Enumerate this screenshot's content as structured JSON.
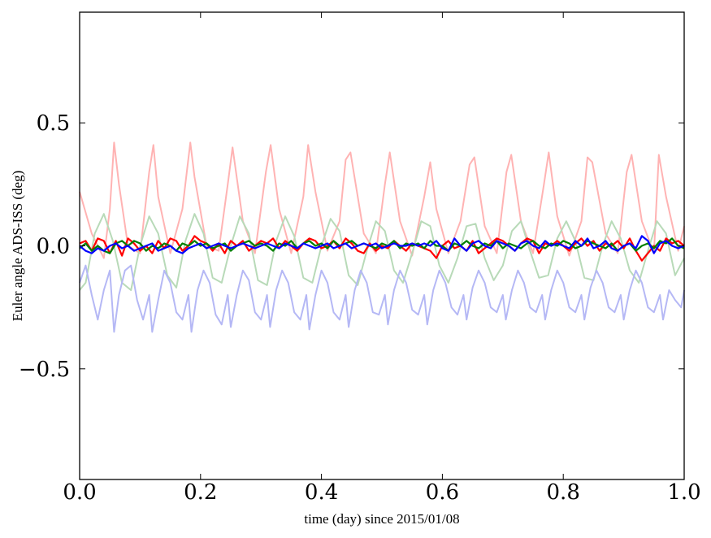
{
  "chart_data": {
    "type": "line",
    "title": "",
    "xlabel": "time (day) since 2015/01/08",
    "ylabel": "Euler angle ADS-ISS (deg)",
    "xlim": [
      0.0,
      1.0
    ],
    "ylim": [
      -0.95,
      0.95
    ],
    "xticks": [
      0.0,
      0.2,
      0.4,
      0.6,
      0.8,
      1.0
    ],
    "xtick_labels": [
      "0.0",
      "0.2",
      "0.4",
      "0.6",
      "0.8",
      "1.0"
    ],
    "yticks": [
      0.5,
      0.0,
      -0.5
    ],
    "ytick_labels": [
      "0.5",
      "0.0",
      "−0.5"
    ],
    "grid": false,
    "legend": "none",
    "series": [
      {
        "color": "#ffb3b3",
        "opacity": 1,
        "x": [
          0.0,
          0.02,
          0.04,
          0.05,
          0.057,
          0.065,
          0.08,
          0.1,
          0.115,
          0.122,
          0.13,
          0.15,
          0.17,
          0.183,
          0.19,
          0.21,
          0.23,
          0.245,
          0.253,
          0.27,
          0.29,
          0.308,
          0.316,
          0.33,
          0.35,
          0.37,
          0.378,
          0.39,
          0.41,
          0.43,
          0.44,
          0.448,
          0.47,
          0.49,
          0.505,
          0.513,
          0.53,
          0.55,
          0.57,
          0.58,
          0.59,
          0.61,
          0.63,
          0.645,
          0.653,
          0.67,
          0.69,
          0.706,
          0.714,
          0.73,
          0.75,
          0.768,
          0.776,
          0.79,
          0.81,
          0.83,
          0.84,
          0.848,
          0.87,
          0.89,
          0.905,
          0.913,
          0.93,
          0.95,
          0.958,
          0.97,
          0.99,
          1.0
        ],
        "y": [
          0.22,
          0.05,
          -0.05,
          0.15,
          0.42,
          0.25,
          0.0,
          -0.03,
          0.3,
          0.41,
          0.2,
          -0.03,
          0.15,
          0.42,
          0.28,
          0.0,
          -0.02,
          0.25,
          0.4,
          0.1,
          -0.03,
          0.3,
          0.41,
          0.15,
          -0.03,
          0.2,
          0.41,
          0.22,
          -0.02,
          0.1,
          0.35,
          0.38,
          0.05,
          -0.03,
          0.25,
          0.38,
          0.1,
          -0.04,
          0.2,
          0.34,
          0.15,
          -0.03,
          0.1,
          0.33,
          0.36,
          0.08,
          -0.03,
          0.3,
          0.37,
          0.1,
          -0.03,
          0.25,
          0.38,
          0.12,
          -0.04,
          0.1,
          0.36,
          0.34,
          0.05,
          -0.03,
          0.3,
          0.37,
          0.1,
          -0.03,
          0.37,
          0.2,
          -0.02,
          0.08
        ]
      },
      {
        "color": "#b8dab8",
        "opacity": 1,
        "x": [
          0.0,
          0.01,
          0.025,
          0.04,
          0.055,
          0.07,
          0.085,
          0.1,
          0.115,
          0.13,
          0.145,
          0.16,
          0.175,
          0.19,
          0.205,
          0.22,
          0.235,
          0.25,
          0.265,
          0.28,
          0.295,
          0.31,
          0.325,
          0.34,
          0.355,
          0.37,
          0.385,
          0.4,
          0.415,
          0.43,
          0.445,
          0.46,
          0.475,
          0.49,
          0.505,
          0.52,
          0.535,
          0.55,
          0.565,
          0.58,
          0.595,
          0.61,
          0.625,
          0.64,
          0.655,
          0.67,
          0.685,
          0.7,
          0.715,
          0.73,
          0.745,
          0.76,
          0.775,
          0.79,
          0.805,
          0.82,
          0.835,
          0.85,
          0.865,
          0.88,
          0.895,
          0.91,
          0.925,
          0.94,
          0.955,
          0.97,
          0.985,
          1.0
        ],
        "y": [
          -0.18,
          -0.15,
          0.05,
          0.13,
          0.02,
          -0.15,
          -0.18,
          0.0,
          0.12,
          0.05,
          -0.12,
          -0.17,
          0.02,
          0.13,
          0.05,
          -0.13,
          -0.15,
          0.0,
          0.12,
          0.05,
          -0.14,
          -0.16,
          0.02,
          0.12,
          0.04,
          -0.13,
          -0.15,
          0.0,
          0.11,
          0.06,
          -0.12,
          -0.16,
          -0.02,
          0.1,
          0.06,
          -0.1,
          -0.15,
          -0.03,
          0.1,
          0.08,
          -0.08,
          -0.15,
          -0.05,
          0.08,
          0.09,
          -0.05,
          -0.14,
          -0.08,
          0.06,
          0.1,
          -0.02,
          -0.13,
          -0.12,
          0.03,
          0.1,
          0.02,
          -0.13,
          -0.14,
          0.0,
          0.1,
          0.03,
          -0.1,
          -0.15,
          -0.02,
          0.1,
          0.05,
          -0.12,
          -0.05
        ]
      },
      {
        "color": "#b5b8f5",
        "opacity": 1,
        "x": [
          0.0,
          0.01,
          0.02,
          0.03,
          0.04,
          0.05,
          0.057,
          0.065,
          0.075,
          0.085,
          0.095,
          0.105,
          0.115,
          0.12,
          0.13,
          0.14,
          0.15,
          0.16,
          0.17,
          0.18,
          0.185,
          0.195,
          0.205,
          0.215,
          0.225,
          0.235,
          0.245,
          0.25,
          0.26,
          0.27,
          0.28,
          0.29,
          0.3,
          0.31,
          0.315,
          0.325,
          0.335,
          0.345,
          0.355,
          0.365,
          0.375,
          0.38,
          0.39,
          0.4,
          0.41,
          0.42,
          0.43,
          0.44,
          0.445,
          0.455,
          0.465,
          0.475,
          0.485,
          0.495,
          0.505,
          0.51,
          0.52,
          0.53,
          0.54,
          0.55,
          0.56,
          0.57,
          0.575,
          0.585,
          0.595,
          0.605,
          0.615,
          0.625,
          0.635,
          0.64,
          0.65,
          0.66,
          0.67,
          0.68,
          0.69,
          0.7,
          0.705,
          0.715,
          0.725,
          0.735,
          0.745,
          0.755,
          0.765,
          0.77,
          0.78,
          0.79,
          0.8,
          0.81,
          0.82,
          0.83,
          0.835,
          0.845,
          0.855,
          0.865,
          0.875,
          0.885,
          0.895,
          0.9,
          0.91,
          0.92,
          0.93,
          0.94,
          0.95,
          0.96,
          0.965,
          0.975,
          0.985,
          0.995,
          1.0
        ],
        "y": [
          -0.15,
          -0.08,
          -0.2,
          -0.3,
          -0.18,
          -0.1,
          -0.35,
          -0.2,
          -0.1,
          -0.08,
          -0.22,
          -0.3,
          -0.2,
          -0.35,
          -0.22,
          -0.1,
          -0.15,
          -0.27,
          -0.3,
          -0.2,
          -0.35,
          -0.18,
          -0.1,
          -0.15,
          -0.28,
          -0.32,
          -0.2,
          -0.33,
          -0.2,
          -0.1,
          -0.14,
          -0.27,
          -0.3,
          -0.2,
          -0.33,
          -0.18,
          -0.1,
          -0.15,
          -0.27,
          -0.3,
          -0.2,
          -0.34,
          -0.2,
          -0.1,
          -0.15,
          -0.27,
          -0.3,
          -0.2,
          -0.33,
          -0.18,
          -0.1,
          -0.15,
          -0.27,
          -0.28,
          -0.2,
          -0.32,
          -0.18,
          -0.1,
          -0.15,
          -0.26,
          -0.28,
          -0.2,
          -0.32,
          -0.18,
          -0.1,
          -0.15,
          -0.25,
          -0.28,
          -0.2,
          -0.3,
          -0.17,
          -0.1,
          -0.15,
          -0.25,
          -0.27,
          -0.2,
          -0.3,
          -0.18,
          -0.1,
          -0.15,
          -0.25,
          -0.27,
          -0.2,
          -0.3,
          -0.18,
          -0.1,
          -0.15,
          -0.25,
          -0.27,
          -0.2,
          -0.3,
          -0.17,
          -0.1,
          -0.15,
          -0.25,
          -0.27,
          -0.2,
          -0.3,
          -0.18,
          -0.1,
          -0.15,
          -0.25,
          -0.27,
          -0.2,
          -0.3,
          -0.18,
          -0.22,
          -0.25,
          -0.18
        ]
      },
      {
        "color": "#ff0000",
        "opacity": 1,
        "x": [
          0.0,
          0.01,
          0.02,
          0.03,
          0.04,
          0.05,
          0.06,
          0.07,
          0.08,
          0.09,
          0.1,
          0.11,
          0.12,
          0.13,
          0.14,
          0.15,
          0.16,
          0.17,
          0.18,
          0.19,
          0.2,
          0.21,
          0.22,
          0.23,
          0.24,
          0.25,
          0.26,
          0.27,
          0.28,
          0.29,
          0.3,
          0.31,
          0.32,
          0.33,
          0.34,
          0.35,
          0.36,
          0.37,
          0.38,
          0.39,
          0.4,
          0.41,
          0.42,
          0.43,
          0.44,
          0.45,
          0.46,
          0.47,
          0.48,
          0.49,
          0.5,
          0.51,
          0.52,
          0.53,
          0.54,
          0.55,
          0.56,
          0.57,
          0.58,
          0.59,
          0.6,
          0.61,
          0.62,
          0.63,
          0.64,
          0.65,
          0.66,
          0.67,
          0.68,
          0.69,
          0.7,
          0.71,
          0.72,
          0.73,
          0.74,
          0.75,
          0.76,
          0.77,
          0.78,
          0.79,
          0.8,
          0.81,
          0.82,
          0.83,
          0.84,
          0.85,
          0.86,
          0.87,
          0.88,
          0.89,
          0.9,
          0.91,
          0.92,
          0.93,
          0.94,
          0.95,
          0.96,
          0.97,
          0.98,
          0.99,
          1.0
        ],
        "y": [
          0.01,
          0.02,
          -0.02,
          0.03,
          0.02,
          -0.03,
          0.02,
          -0.04,
          0.03,
          0.01,
          -0.02,
          0.0,
          -0.03,
          0.02,
          -0.01,
          0.03,
          0.02,
          -0.02,
          0.0,
          0.04,
          0.02,
          0.01,
          -0.02,
          0.01,
          -0.03,
          0.02,
          0.0,
          0.02,
          -0.02,
          0.0,
          0.02,
          0.01,
          0.03,
          -0.01,
          0.02,
          0.0,
          -0.02,
          0.01,
          0.03,
          0.02,
          -0.01,
          0.0,
          0.02,
          -0.01,
          0.03,
          0.01,
          -0.02,
          -0.03,
          0.01,
          -0.02,
          0.0,
          -0.01,
          0.02,
          0.0,
          -0.02,
          0.01,
          0.0,
          -0.01,
          -0.02,
          -0.05,
          0.0,
          0.02,
          -0.01,
          0.0,
          -0.02,
          0.02,
          -0.03,
          -0.01,
          0.01,
          0.03,
          0.02,
          0.0,
          -0.02,
          0.01,
          0.03,
          0.02,
          -0.03,
          0.01,
          0.0,
          0.02,
          0.0,
          -0.02,
          0.01,
          0.03,
          0.0,
          0.02,
          -0.02,
          0.01,
          0.0,
          0.02,
          -0.01,
          0.03,
          -0.02,
          -0.06,
          -0.03,
          0.0,
          -0.02,
          0.03,
          0.01,
          0.02,
          0.0
        ]
      },
      {
        "color": "#007f00",
        "opacity": 1,
        "x": [
          0.0,
          0.01,
          0.02,
          0.03,
          0.04,
          0.05,
          0.06,
          0.07,
          0.08,
          0.09,
          0.1,
          0.11,
          0.12,
          0.13,
          0.14,
          0.15,
          0.16,
          0.17,
          0.18,
          0.19,
          0.2,
          0.21,
          0.22,
          0.23,
          0.24,
          0.25,
          0.26,
          0.27,
          0.28,
          0.29,
          0.3,
          0.31,
          0.32,
          0.33,
          0.34,
          0.35,
          0.36,
          0.37,
          0.38,
          0.39,
          0.4,
          0.41,
          0.42,
          0.43,
          0.44,
          0.45,
          0.46,
          0.47,
          0.48,
          0.49,
          0.5,
          0.51,
          0.52,
          0.53,
          0.54,
          0.55,
          0.56,
          0.57,
          0.58,
          0.59,
          0.6,
          0.61,
          0.62,
          0.63,
          0.64,
          0.65,
          0.66,
          0.67,
          0.68,
          0.69,
          0.7,
          0.71,
          0.72,
          0.73,
          0.74,
          0.75,
          0.76,
          0.77,
          0.78,
          0.79,
          0.8,
          0.81,
          0.82,
          0.83,
          0.84,
          0.85,
          0.86,
          0.87,
          0.88,
          0.89,
          0.9,
          0.91,
          0.92,
          0.93,
          0.94,
          0.95,
          0.96,
          0.97,
          0.98,
          0.99,
          1.0
        ],
        "y": [
          -0.01,
          0.01,
          -0.02,
          0.0,
          -0.02,
          -0.03,
          0.01,
          0.02,
          0.0,
          0.02,
          0.01,
          -0.02,
          0.0,
          -0.01,
          0.01,
          0.0,
          -0.02,
          0.01,
          0.0,
          0.02,
          0.0,
          0.01,
          -0.01,
          0.0,
          0.01,
          -0.02,
          0.0,
          0.01,
          0.02,
          0.0,
          0.01,
          0.0,
          -0.02,
          0.01,
          0.0,
          0.02,
          -0.01,
          0.01,
          0.02,
          0.0,
          0.01,
          -0.01,
          0.02,
          0.0,
          0.01,
          0.02,
          0.0,
          0.01,
          0.0,
          -0.01,
          0.01,
          0.0,
          0.02,
          -0.01,
          0.01,
          0.0,
          0.01,
          -0.01,
          0.02,
          0.0,
          0.0,
          -0.02,
          0.01,
          0.0,
          0.02,
          0.0,
          -0.01,
          0.01,
          0.0,
          0.02,
          -0.01,
          0.01,
          0.0,
          -0.01,
          0.01,
          0.02,
          0.0,
          -0.01,
          0.01,
          0.0,
          0.02,
          0.01,
          -0.01,
          0.0,
          0.02,
          0.01,
          0.0,
          -0.01,
          0.01,
          -0.02,
          0.0,
          0.01,
          -0.02,
          0.0,
          0.01,
          -0.01,
          0.02,
          0.01,
          0.03,
          0.0,
          -0.01
        ]
      },
      {
        "color": "#0000ff",
        "opacity": 1,
        "x": [
          0.0,
          0.01,
          0.02,
          0.03,
          0.04,
          0.05,
          0.06,
          0.07,
          0.08,
          0.09,
          0.1,
          0.11,
          0.12,
          0.13,
          0.14,
          0.15,
          0.16,
          0.17,
          0.18,
          0.19,
          0.2,
          0.21,
          0.22,
          0.23,
          0.24,
          0.25,
          0.26,
          0.27,
          0.28,
          0.29,
          0.3,
          0.31,
          0.32,
          0.33,
          0.34,
          0.35,
          0.36,
          0.37,
          0.38,
          0.39,
          0.4,
          0.41,
          0.42,
          0.43,
          0.44,
          0.45,
          0.46,
          0.47,
          0.48,
          0.49,
          0.5,
          0.51,
          0.52,
          0.53,
          0.54,
          0.55,
          0.56,
          0.57,
          0.58,
          0.59,
          0.6,
          0.61,
          0.62,
          0.63,
          0.64,
          0.65,
          0.66,
          0.67,
          0.68,
          0.69,
          0.7,
          0.71,
          0.72,
          0.73,
          0.74,
          0.75,
          0.76,
          0.77,
          0.78,
          0.79,
          0.8,
          0.81,
          0.82,
          0.83,
          0.84,
          0.85,
          0.86,
          0.87,
          0.88,
          0.89,
          0.9,
          0.91,
          0.92,
          0.93,
          0.94,
          0.95,
          0.96,
          0.97,
          0.98,
          0.99,
          1.0
        ],
        "y": [
          0.0,
          -0.02,
          -0.03,
          -0.01,
          -0.02,
          0.0,
          0.01,
          -0.01,
          0.0,
          -0.02,
          -0.01,
          0.0,
          0.01,
          -0.02,
          -0.01,
          0.0,
          -0.02,
          -0.03,
          -0.01,
          0.0,
          0.01,
          -0.01,
          0.0,
          0.01,
          0.0,
          -0.01,
          0.0,
          0.01,
          0.0,
          -0.01,
          0.0,
          0.01,
          0.0,
          -0.01,
          0.01,
          0.0,
          -0.01,
          0.01,
          0.0,
          -0.01,
          0.0,
          0.01,
          -0.01,
          0.0,
          0.01,
          -0.01,
          0.0,
          0.01,
          0.0,
          0.01,
          -0.01,
          0.0,
          0.01,
          0.0,
          0.0,
          0.01,
          0.0,
          0.01,
          0.0,
          0.02,
          -0.01,
          -0.02,
          0.03,
          0.0,
          -0.02,
          0.01,
          0.02,
          0.0,
          -0.01,
          0.02,
          0.01,
          0.0,
          -0.02,
          0.01,
          0.02,
          0.0,
          -0.01,
          0.02,
          0.0,
          0.01,
          0.0,
          -0.01,
          0.02,
          0.0,
          0.03,
          -0.01,
          0.0,
          0.02,
          -0.01,
          -0.02,
          0.0,
          0.01,
          -0.01,
          0.04,
          0.02,
          -0.03,
          0.01,
          0.02,
          0.0,
          -0.01,
          0.0
        ]
      }
    ]
  }
}
